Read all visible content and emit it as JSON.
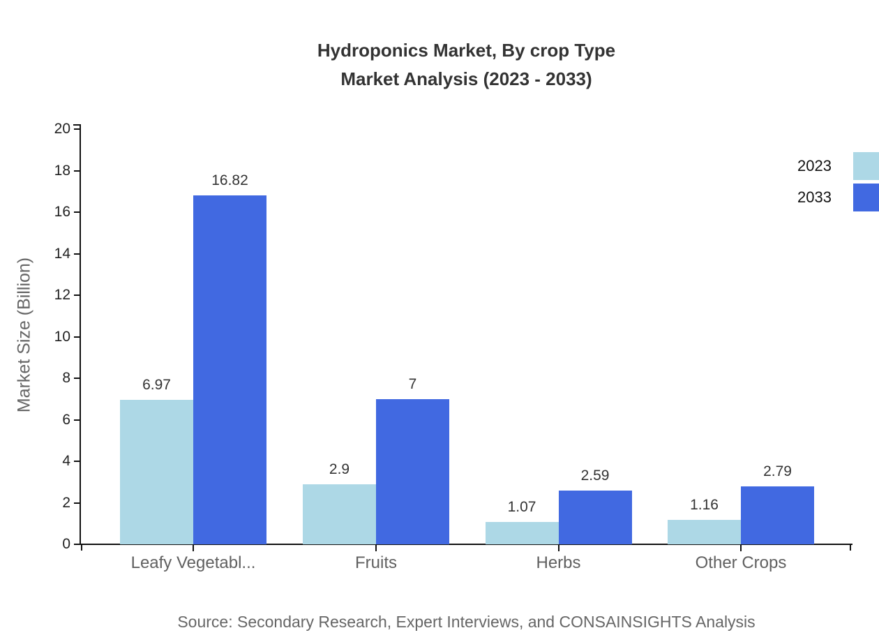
{
  "title": {
    "line1": "Hydroponics Market, By crop Type",
    "line2": "Market Analysis (2023 - 2033)"
  },
  "legend": [
    {
      "label": "2023",
      "color": "#ADD8E6"
    },
    {
      "label": "2033",
      "color": "#4169E1"
    }
  ],
  "source": "Source: Secondary Research, Expert Interviews, and CONSAINSIGHTS Analysis",
  "chart_data": {
    "type": "bar",
    "title": "Hydroponics Market, By crop Type Market Analysis (2023 - 2033)",
    "categories": [
      "Leafy Vegetabl...",
      "Fruits",
      "Herbs",
      "Other Crops"
    ],
    "series": [
      {
        "name": "2023",
        "color": "#ADD8E6",
        "values": [
          6.97,
          2.9,
          1.07,
          1.16
        ]
      },
      {
        "name": "2033",
        "color": "#4169E1",
        "values": [
          16.82,
          7,
          2.59,
          2.79
        ]
      }
    ],
    "value_labels": [
      [
        "6.97",
        "2.9",
        "1.07",
        "1.16"
      ],
      [
        "16.82",
        "7",
        "2.59",
        "2.79"
      ]
    ],
    "xlabel": "",
    "ylabel": "Market Size (Billion)",
    "ylim": [
      0,
      20
    ],
    "yticks": [
      "0",
      "2",
      "4",
      "6",
      "8",
      "10",
      "12",
      "14",
      "16",
      "18",
      "20"
    ],
    "ytick_step": 2,
    "grid": false,
    "legend_position": "top-right",
    "axis_color": "#111111",
    "tick_label_color": "#222222",
    "category_label_color": "#606060"
  }
}
